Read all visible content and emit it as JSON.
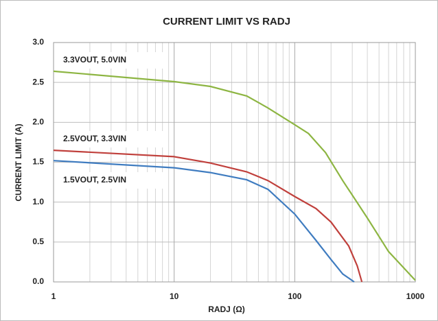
{
  "chart_data": {
    "type": "line",
    "title": "CURRENT LIMIT VS RADJ",
    "xlabel": "RADJ (Ω)",
    "ylabel": "CURRENT LIMIT (A)",
    "xscale": "log",
    "grid": true,
    "xlim": [
      1,
      1000
    ],
    "xticks": [
      1,
      10,
      100,
      1000
    ],
    "ylim": [
      0,
      3
    ],
    "yticks": [
      {
        "value": 0,
        "label": "0.0"
      },
      0.5,
      {
        "value": 1,
        "label": "1.0"
      },
      1.5,
      {
        "value": 2,
        "label": "2.0"
      },
      2.5,
      {
        "value": 3,
        "label": "3.0"
      }
    ],
    "series": [
      {
        "name": "3.3VOUT, 5.0VIN",
        "color": "#8db542",
        "x": [
          1,
          10,
          20,
          40,
          60,
          100,
          130,
          180,
          250,
          400,
          600,
          1000
        ],
        "values": [
          2.64,
          2.51,
          2.45,
          2.33,
          2.18,
          1.97,
          1.86,
          1.62,
          1.27,
          0.8,
          0.38,
          0.02
        ]
      },
      {
        "name": "2.5VOUT, 3.3VIN",
        "color": "#c0403c",
        "x": [
          1,
          10,
          20,
          40,
          60,
          100,
          150,
          200,
          280,
          330,
          330,
          360
        ],
        "values": [
          1.65,
          1.57,
          1.49,
          1.38,
          1.27,
          1.07,
          0.92,
          0.75,
          0.45,
          0.2,
          0.2,
          0.0
        ]
      },
      {
        "name": "1.5VOUT, 2.5VIN",
        "color": "#3f7cc0",
        "x": [
          1,
          10,
          20,
          40,
          60,
          100,
          150,
          200,
          250,
          311
        ],
        "values": [
          1.52,
          1.43,
          1.37,
          1.28,
          1.16,
          0.85,
          0.52,
          0.28,
          0.1,
          0.0
        ]
      }
    ]
  }
}
